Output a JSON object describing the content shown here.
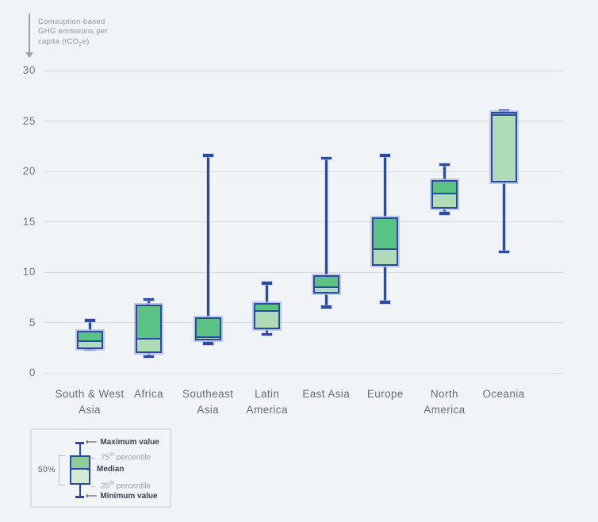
{
  "title": {
    "line1": "Comsuption-based",
    "line2": "GHG emissions per",
    "line3_pre": "capita (tCO",
    "line3_sub": "2",
    "line3_post": "e)"
  },
  "chart_data": {
    "type": "boxplot",
    "ylabel": "Comsuption-based GHG emissions per capita (tCO2e)",
    "ylim": [
      0,
      30
    ],
    "yticks": [
      0,
      5,
      10,
      15,
      20,
      25,
      30
    ],
    "grid": "horizontal",
    "categories": [
      "South & West\nAsia",
      "Africa",
      "Southeast\nAsia",
      "Latin\nAmerica",
      "East Asia",
      "Europe",
      "North\nAmerica",
      "Oceania"
    ],
    "series": [
      {
        "name": "South & West Asia",
        "min": 2.3,
        "q1": 2.4,
        "median": 3.0,
        "q3": 4.2,
        "max": 5.2
      },
      {
        "name": "Africa",
        "min": 1.6,
        "q1": 2.0,
        "median": 3.3,
        "q3": 6.8,
        "max": 7.3
      },
      {
        "name": "Southeast Asia",
        "min": 2.9,
        "q1": 3.2,
        "median": 3.4,
        "q3": 5.5,
        "max": 21.6
      },
      {
        "name": "Latin America",
        "min": 3.8,
        "q1": 4.3,
        "median": 6.0,
        "q3": 6.9,
        "max": 8.9
      },
      {
        "name": "East Asia",
        "min": 6.5,
        "q1": 7.9,
        "median": 8.4,
        "q3": 9.7,
        "max": 21.3
      },
      {
        "name": "Europe",
        "min": 7.0,
        "q1": 10.6,
        "median": 12.2,
        "q3": 15.4,
        "max": 21.6
      },
      {
        "name": "North America",
        "min": 15.8,
        "q1": 16.3,
        "median": 17.7,
        "q3": 19.1,
        "max": 20.7
      },
      {
        "name": "Oceania",
        "min": 12.0,
        "q1": 18.9,
        "median": 25.5,
        "q3": 25.9,
        "max": 26.0
      }
    ]
  },
  "colors": {
    "background": "#f0f4f7",
    "gridline": "#d9dae0",
    "box_border": "#2b4aa3",
    "box_halo": "#b1bee4",
    "box_fill_upper": "#5bc286",
    "box_fill_lower": "#afdcb6",
    "legend_fill_upper": "#8fcc9b",
    "legend_fill_lower": "#d3ead6",
    "axis_text": "#6e7780",
    "title_text": "#8d949c"
  },
  "legend": {
    "pct_label": "50%",
    "rows": [
      {
        "arrow": "⟵",
        "pre": "Maximum value",
        "sup": "",
        "post": "",
        "tone": "dark"
      },
      {
        "arrow": "←",
        "pre": "75",
        "sup": "th",
        "post": " percentile",
        "tone": "gray"
      },
      {
        "arrow": "←",
        "pre": "Median",
        "sup": "",
        "post": "",
        "tone": "dark"
      },
      {
        "arrow": "←",
        "pre": "25",
        "sup": "th",
        "post": " percentile",
        "tone": "gray"
      },
      {
        "arrow": "⟵",
        "pre": "Minimum value",
        "sup": "",
        "post": "",
        "tone": "dark"
      }
    ]
  }
}
